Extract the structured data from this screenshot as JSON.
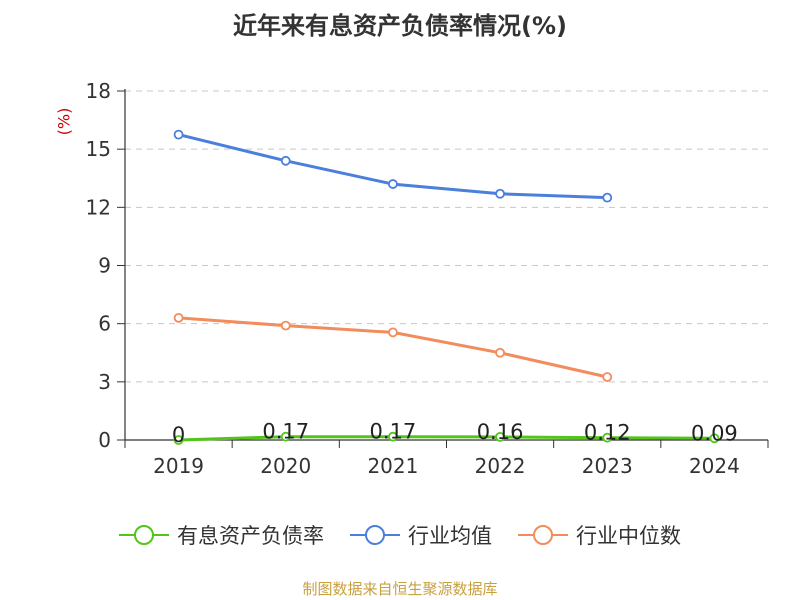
{
  "chart_data": {
    "type": "line",
    "title": "近年来有息资产负债率情况(%)",
    "ylabel": "(%)",
    "categories": [
      "2019",
      "2020",
      "2021",
      "2022",
      "2023",
      "2024"
    ],
    "ylim": [
      0,
      18
    ],
    "yticks": [
      0,
      3,
      6,
      9,
      12,
      15,
      18
    ],
    "grid": true,
    "legend_position": "bottom",
    "series": [
      {
        "name": "有息资产负债率",
        "color": "#52c41a",
        "values": [
          0,
          0.17,
          0.17,
          0.16,
          0.12,
          0.09
        ],
        "labels": [
          "0",
          "0.17",
          "0.17",
          "0.16",
          "0.12",
          "0.09"
        ]
      },
      {
        "name": "行业均值",
        "color": "#4a7fdc",
        "values": [
          15.75,
          14.4,
          13.2,
          12.7,
          12.5,
          null
        ]
      },
      {
        "name": "行业中位数",
        "color": "#f28c5c",
        "values": [
          6.3,
          5.9,
          5.55,
          4.5,
          3.25,
          null
        ]
      }
    ]
  },
  "source": "制图数据来自恒生聚源数据库"
}
